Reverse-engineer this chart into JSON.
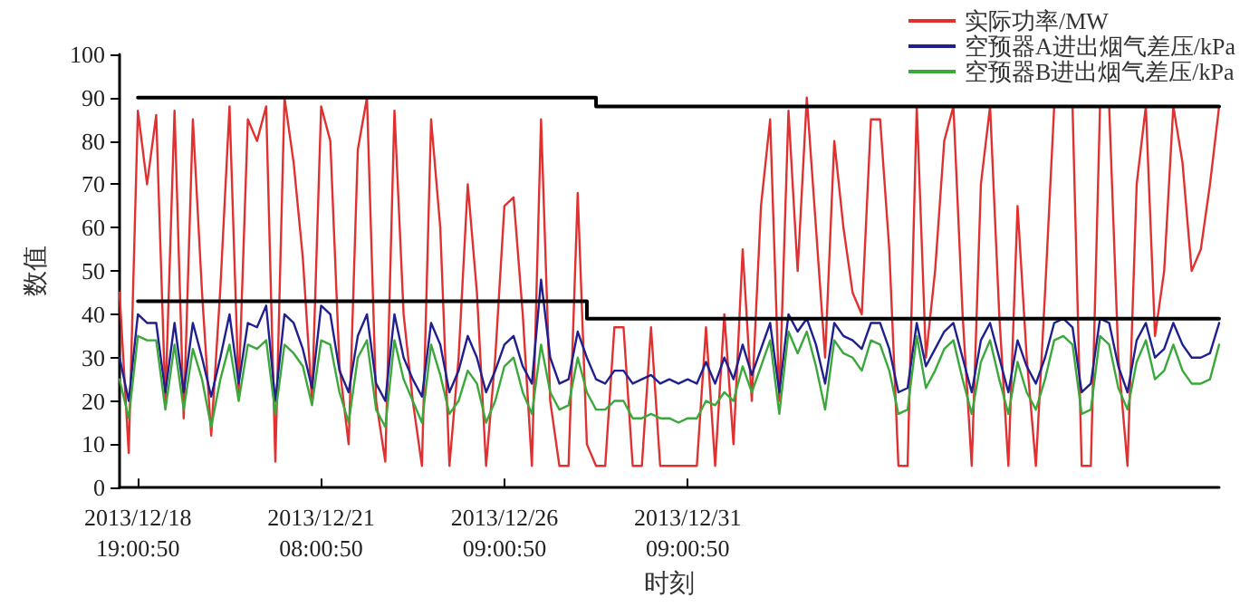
{
  "chart_data": {
    "type": "line",
    "xlabel": "时刻",
    "ylabel": "数值",
    "ylim": [
      0,
      100
    ],
    "yticks": [
      0,
      10,
      20,
      30,
      40,
      50,
      60,
      70,
      80,
      90,
      100
    ],
    "grid": false,
    "legend": "top right",
    "marker": "none",
    "line_style": "solid",
    "categories": [
      null,
      null,
      "2013/12/18\n19:00:50",
      null,
      null,
      null,
      null,
      null,
      null,
      null,
      null,
      null,
      null,
      null,
      null,
      null,
      null,
      null,
      null,
      null,
      null,
      null,
      "2013/12/21\n08:00:50",
      null,
      null,
      null,
      null,
      null,
      null,
      null,
      null,
      null,
      null,
      null,
      null,
      null,
      null,
      null,
      null,
      null,
      null,
      null,
      "2013/12/26\n09:00:50",
      null,
      null,
      null,
      null,
      null,
      null,
      null,
      null,
      null,
      null,
      null,
      null,
      null,
      null,
      null,
      null,
      null,
      null,
      null,
      "2013/12/31\n09:00:50",
      null,
      null,
      null,
      null,
      null,
      null,
      null,
      null,
      null,
      null,
      null,
      null,
      null,
      null,
      null,
      null,
      null,
      null,
      null,
      null,
      null,
      null,
      null,
      null,
      null,
      null,
      null,
      null,
      null,
      null,
      null,
      null,
      null,
      null,
      null,
      null,
      null,
      null,
      null,
      null,
      null,
      null,
      null,
      null,
      null,
      null,
      null,
      null,
      null,
      null,
      null,
      null,
      null,
      null,
      null,
      null,
      null,
      null
    ],
    "series": [
      {
        "name": "实际功率/MW",
        "color": "#e03030",
        "values": [
          45,
          8,
          87,
          70,
          86,
          20,
          87,
          16,
          85,
          45,
          12,
          46,
          88,
          22,
          85,
          80,
          88,
          6,
          90,
          75,
          53,
          20,
          88,
          80,
          28,
          10,
          78,
          90,
          20,
          6,
          87,
          40,
          20,
          5,
          85,
          60,
          5,
          30,
          70,
          45,
          5,
          30,
          65,
          67,
          40,
          5,
          85,
          20,
          5,
          5,
          68,
          10,
          5,
          5,
          37,
          37,
          5,
          5,
          37,
          5,
          5,
          5,
          5,
          5,
          37,
          5,
          40,
          10,
          55,
          20,
          65,
          85,
          20,
          87,
          50,
          90,
          60,
          30,
          80,
          60,
          45,
          40,
          85,
          85,
          55,
          5,
          5,
          88,
          30,
          50,
          80,
          88,
          40,
          5,
          70,
          88,
          40,
          5,
          65,
          30,
          5,
          45,
          88,
          88,
          88,
          5,
          5,
          88,
          88,
          30,
          5,
          70,
          88,
          35,
          50,
          88,
          75,
          50,
          55,
          70,
          88
        ]
      },
      {
        "name": "空预器A进出烟气差压/kPa",
        "color": "#1f1f8f",
        "values": [
          30,
          20,
          40,
          38,
          38,
          22,
          38,
          22,
          38,
          30,
          21,
          30,
          40,
          24,
          38,
          37,
          42,
          20,
          40,
          38,
          32,
          23,
          42,
          40,
          27,
          22,
          35,
          40,
          24,
          20,
          40,
          30,
          25,
          21,
          38,
          33,
          22,
          27,
          35,
          30,
          22,
          27,
          33,
          35,
          28,
          24,
          48,
          30,
          24,
          25,
          36,
          30,
          25,
          24,
          27,
          27,
          24,
          25,
          26,
          24,
          25,
          24,
          25,
          24,
          29,
          24,
          30,
          25,
          33,
          26,
          32,
          38,
          22,
          40,
          36,
          39,
          33,
          24,
          38,
          35,
          34,
          32,
          38,
          38,
          32,
          22,
          23,
          38,
          28,
          32,
          36,
          38,
          30,
          22,
          34,
          38,
          30,
          22,
          34,
          28,
          24,
          30,
          38,
          39,
          37,
          22,
          24,
          39,
          38,
          28,
          22,
          34,
          38,
          30,
          32,
          38,
          33,
          30,
          30,
          31,
          38
        ]
      },
      {
        "name": "空预器B进出烟气差压/kPa",
        "color": "#3aa83a",
        "values": [
          25,
          16,
          35,
          34,
          34,
          18,
          33,
          18,
          32,
          25,
          14,
          25,
          33,
          20,
          33,
          32,
          34,
          17,
          33,
          31,
          28,
          19,
          34,
          33,
          22,
          15,
          30,
          34,
          18,
          14,
          34,
          25,
          20,
          15,
          33,
          26,
          17,
          20,
          27,
          24,
          15,
          20,
          28,
          30,
          22,
          17,
          33,
          22,
          18,
          19,
          30,
          22,
          18,
          18,
          20,
          20,
          16,
          16,
          17,
          16,
          16,
          15,
          16,
          16,
          20,
          19,
          22,
          20,
          28,
          22,
          28,
          34,
          17,
          36,
          31,
          36,
          28,
          18,
          34,
          31,
          30,
          27,
          34,
          33,
          27,
          17,
          18,
          35,
          23,
          27,
          32,
          34,
          25,
          17,
          29,
          34,
          25,
          17,
          29,
          22,
          18,
          25,
          34,
          35,
          33,
          17,
          18,
          35,
          33,
          23,
          18,
          29,
          34,
          25,
          27,
          33,
          27,
          24,
          24,
          25,
          33
        ]
      },
      {
        "type": "step",
        "color": "#000000",
        "values": [
          null,
          null,
          90,
          90,
          90,
          90,
          90,
          90,
          90,
          90,
          90,
          90,
          90,
          90,
          90,
          90,
          90,
          90,
          90,
          90,
          90,
          90,
          90,
          90,
          90,
          90,
          90,
          90,
          90,
          90,
          90,
          90,
          90,
          90,
          90,
          90,
          90,
          90,
          90,
          90,
          90,
          90,
          90,
          90,
          90,
          90,
          90,
          90,
          90,
          90,
          90,
          90,
          88,
          88,
          88,
          88,
          88,
          88,
          88,
          88,
          88,
          88,
          88,
          88,
          88,
          88,
          88,
          88,
          88,
          88,
          88,
          88,
          88,
          88,
          88,
          88,
          88,
          88,
          88,
          88,
          88,
          88,
          88,
          88,
          88,
          88,
          88,
          88,
          88,
          88,
          88,
          88,
          88,
          88,
          88,
          88,
          88,
          88,
          88,
          88,
          88,
          88,
          88,
          88,
          88,
          88,
          88,
          88,
          88,
          88,
          88,
          88,
          88,
          88,
          88,
          88,
          88,
          88,
          88,
          88,
          88
        ]
      },
      {
        "type": "step",
        "color": "#000000",
        "values": [
          null,
          null,
          43,
          43,
          43,
          43,
          43,
          43,
          43,
          43,
          43,
          43,
          43,
          43,
          43,
          43,
          43,
          43,
          43,
          43,
          43,
          43,
          43,
          43,
          43,
          43,
          43,
          43,
          43,
          43,
          43,
          43,
          43,
          43,
          43,
          43,
          43,
          43,
          43,
          43,
          43,
          43,
          43,
          43,
          43,
          43,
          43,
          43,
          43,
          43,
          43,
          39,
          39,
          39,
          39,
          39,
          39,
          39,
          39,
          39,
          39,
          39,
          39,
          39,
          39,
          39,
          39,
          39,
          39,
          39,
          39,
          39,
          39,
          39,
          39,
          39,
          39,
          39,
          39,
          39,
          39,
          39,
          39,
          39,
          39,
          39,
          39,
          39,
          39,
          39,
          39,
          39,
          39,
          39,
          39,
          39,
          39,
          39,
          39,
          39,
          39,
          39,
          39,
          39,
          39,
          39,
          39,
          39,
          39,
          39,
          39,
          39,
          39,
          39,
          39,
          39,
          39,
          39,
          39,
          39,
          39
        ]
      }
    ]
  }
}
